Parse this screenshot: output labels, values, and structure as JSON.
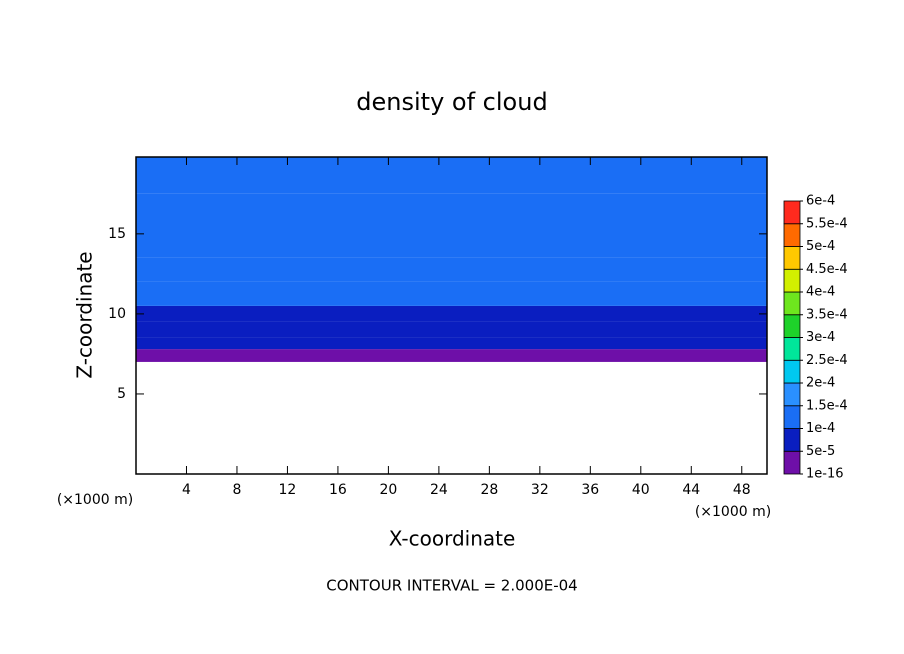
{
  "chart_data": {
    "type": "contour",
    "title": "density of cloud",
    "x_label": "X-coordinate",
    "y_label": "Z-coordinate",
    "x_unit_left": "(×1000 m)",
    "x_unit_right": "(×1000 m)",
    "footer": "CONTOUR INTERVAL = 2.000E-04",
    "xlim": [
      0,
      50
    ],
    "xticks": [
      4,
      8,
      12,
      16,
      20,
      24,
      28,
      32,
      36,
      40,
      44,
      48
    ],
    "ylim": [
      0,
      19.8
    ],
    "yticks": [
      5,
      10,
      15
    ],
    "profile": {
      "z": [
        7.0,
        7.8,
        8.5,
        9.5,
        10.5,
        12.0,
        13.5,
        17.5
      ],
      "values": [
        3e-05,
        6e-05,
        7e-05,
        8e-05,
        0.000105,
        0.00011,
        0.00013,
        0.00012
      ]
    },
    "colorbar": {
      "ticks": [
        {
          "value": 1e-16,
          "label": "1e-16"
        },
        {
          "value": 5e-05,
          "label": "5e-5"
        },
        {
          "value": 0.0001,
          "label": "1e-4"
        },
        {
          "value": 0.00015,
          "label": "1.5e-4"
        },
        {
          "value": 0.0002,
          "label": "2e-4"
        },
        {
          "value": 0.00025,
          "label": "2.5e-4"
        },
        {
          "value": 0.0003,
          "label": "3e-4"
        },
        {
          "value": 0.00035,
          "label": "3.5e-4"
        },
        {
          "value": 0.0004,
          "label": "4e-4"
        },
        {
          "value": 0.00045,
          "label": "4.5e-4"
        },
        {
          "value": 0.0005,
          "label": "5e-4"
        },
        {
          "value": 0.00055,
          "label": "5.5e-4"
        },
        {
          "value": 0.0006,
          "label": "6e-4"
        }
      ],
      "colors": [
        "#6e0fa8",
        "#0a1ec0",
        "#1a6ef5",
        "#2a90ff",
        "#00c8f0",
        "#00e69a",
        "#1ed22a",
        "#6ee61e",
        "#d2f000",
        "#ffc800",
        "#ff6a00",
        "#ff2a1e"
      ]
    }
  }
}
